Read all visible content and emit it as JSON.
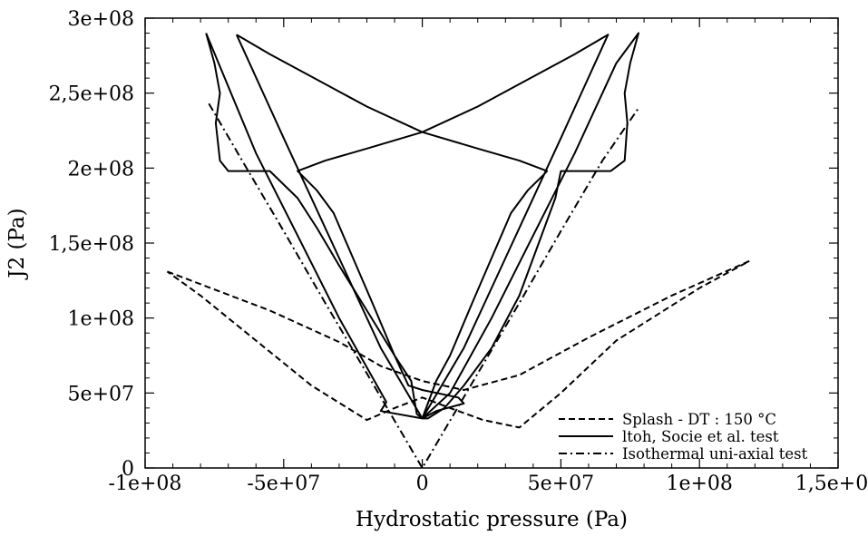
{
  "chart_data": {
    "type": "line",
    "title": "",
    "xlabel": "Hydrostatic pressure (Pa)",
    "ylabel": "J2 (Pa)",
    "xlim": [
      -100000000.0,
      150000000.0
    ],
    "ylim": [
      0,
      300000000.0
    ],
    "grid": false,
    "legend_position": "bottom-right",
    "x_ticks": [
      -100000000.0,
      -50000000.0,
      0,
      50000000.0,
      100000000.0,
      150000000.0
    ],
    "x_tick_labels": [
      "-1e+08",
      "-5e+07",
      "0",
      "5e+07",
      "1e+08",
      "1,5e+08"
    ],
    "y_ticks": [
      0,
      50000000.0,
      100000000.0,
      150000000.0,
      200000000.0,
      250000000.0,
      300000000.0
    ],
    "y_tick_labels": [
      "0",
      "5e+07",
      "1e+08",
      "1,5e+08",
      "2e+08",
      "2,5e+08",
      "3e+08"
    ],
    "series": [
      {
        "name": "Splash - DT : 150 °C",
        "style": "dashed",
        "color": "#000000",
        "points": [
          [
            -92000000.0,
            131000000.0
          ],
          [
            -55000000.0,
            105000000.0
          ],
          [
            -30000000.0,
            84000000.0
          ],
          [
            -15000000.0,
            68000000.0
          ],
          [
            0,
            58000000.0
          ],
          [
            15000000.0,
            52000000.0
          ],
          [
            35000000.0,
            62000000.0
          ],
          [
            60000000.0,
            87000000.0
          ],
          [
            90000000.0,
            115000000.0
          ],
          [
            118000000.0,
            138000000.0
          ],
          [
            100000000.0,
            120000000.0
          ],
          [
            70000000.0,
            85000000.0
          ],
          [
            50000000.0,
            50000000.0
          ],
          [
            35000000.0,
            27000000.0
          ],
          [
            22000000.0,
            32000000.0
          ],
          [
            10000000.0,
            40000000.0
          ],
          [
            0,
            47000000.0
          ],
          [
            -10000000.0,
            40000000.0
          ],
          [
            -20000000.0,
            32000000.0
          ],
          [
            -40000000.0,
            55000000.0
          ],
          [
            -60000000.0,
            85000000.0
          ],
          [
            -80000000.0,
            115000000.0
          ],
          [
            -92000000.0,
            131000000.0
          ]
        ]
      },
      {
        "name": "ltoh, Socie et al. test",
        "style": "solid",
        "color": "#000000",
        "points": [
          [
            -78000000.0,
            290000000.0
          ],
          [
            -75000000.0,
            270000000.0
          ],
          [
            -73000000.0,
            250000000.0
          ],
          [
            -74500000.0,
            230000000.0
          ],
          [
            -73000000.0,
            205000000.0
          ],
          [
            -70000000.0,
            198000000.0
          ],
          [
            -63000000.0,
            198000000.0
          ],
          [
            -55000000.0,
            198000000.0
          ],
          [
            -45000000.0,
            180000000.0
          ],
          [
            -38000000.0,
            160000000.0
          ],
          [
            -30000000.0,
            135000000.0
          ],
          [
            -20000000.0,
            105000000.0
          ],
          [
            -10000000.0,
            75000000.0
          ],
          [
            -5000000.0,
            55000000.0
          ],
          [
            0,
            52000000.0
          ],
          [
            13000000.0,
            47000000.0
          ],
          [
            15000000.0,
            43000000.0
          ],
          [
            5000000.0,
            38000000.0
          ],
          [
            0,
            33000000.0
          ],
          [
            2000000.0,
            33000000.0
          ],
          [
            8000000.0,
            40000000.0
          ],
          [
            15000000.0,
            55000000.0
          ],
          [
            25000000.0,
            80000000.0
          ],
          [
            35000000.0,
            115000000.0
          ],
          [
            42000000.0,
            150000000.0
          ],
          [
            48000000.0,
            180000000.0
          ],
          [
            50000000.0,
            198000000.0
          ],
          [
            55000000.0,
            198000000.0
          ],
          [
            68000000.0,
            198000000.0
          ],
          [
            73000000.0,
            205000000.0
          ],
          [
            74000000.0,
            230000000.0
          ],
          [
            73000000.0,
            250000000.0
          ],
          [
            75000000.0,
            270000000.0
          ],
          [
            78000000.0,
            290000000.0
          ],
          [
            70000000.0,
            270000000.0
          ],
          [
            55000000.0,
            210000000.0
          ],
          [
            40000000.0,
            155000000.0
          ],
          [
            25000000.0,
            100000000.0
          ],
          [
            10000000.0,
            50000000.0
          ],
          [
            0,
            33000000.0
          ],
          [
            -15000000.0,
            38000000.0
          ],
          [
            -13000000.0,
            44000000.0
          ],
          [
            -30000000.0,
            100000000.0
          ],
          [
            -45000000.0,
            155000000.0
          ],
          [
            -60000000.0,
            210000000.0
          ],
          [
            -78000000.0,
            290000000.0
          ]
        ]
      },
      {
        "name": "ltoh, Socie et al. test",
        "style": "solid",
        "color": "#000000",
        "points": [
          [
            -67000000.0,
            289000000.0
          ],
          [
            -55000000.0,
            276000000.0
          ],
          [
            -40000000.0,
            261000000.0
          ],
          [
            -20000000.0,
            241000000.0
          ],
          [
            0,
            224000000.0
          ],
          [
            20000000.0,
            213000000.0
          ],
          [
            35000000.0,
            205000000.0
          ],
          [
            45000000.0,
            198000000.0
          ],
          [
            44000000.0,
            196000000.0
          ],
          [
            38000000.0,
            185000000.0
          ],
          [
            32000000.0,
            170000000.0
          ],
          [
            25000000.0,
            140000000.0
          ],
          [
            18000000.0,
            110000000.0
          ],
          [
            10000000.0,
            75000000.0
          ],
          [
            5000000.0,
            58000000.0
          ],
          [
            0,
            33000000.0
          ],
          [
            -2000000.0,
            36000000.0
          ],
          [
            -4000000.0,
            58000000.0
          ],
          [
            -10000000.0,
            75000000.0
          ],
          [
            -18000000.0,
            110000000.0
          ],
          [
            -25000000.0,
            140000000.0
          ],
          [
            -32000000.0,
            170000000.0
          ],
          [
            -38000000.0,
            185000000.0
          ],
          [
            -45000000.0,
            198000000.0
          ],
          [
            -35000000.0,
            205000000.0
          ],
          [
            -20000000.0,
            213000000.0
          ],
          [
            0,
            224000000.0
          ],
          [
            20000000.0,
            241000000.0
          ],
          [
            40000000.0,
            261000000.0
          ],
          [
            55000000.0,
            276000000.0
          ],
          [
            67000000.0,
            289000000.0
          ],
          [
            50000000.0,
            220000000.0
          ],
          [
            30000000.0,
            140000000.0
          ],
          [
            15000000.0,
            80000000.0
          ],
          [
            0,
            33000000.0
          ],
          [
            -15000000.0,
            80000000.0
          ],
          [
            -30000000.0,
            140000000.0
          ],
          [
            -50000000.0,
            220000000.0
          ],
          [
            -67000000.0,
            289000000.0
          ]
        ]
      },
      {
        "name": "Isothermal uni-axial test",
        "style": "dashdot",
        "color": "#000000",
        "points": [
          [
            -77000000.0,
            243000000.0
          ],
          [
            -65000000.0,
            205000000.0
          ],
          [
            -50000000.0,
            158000000.0
          ],
          [
            -35000000.0,
            110000000.0
          ],
          [
            -20000000.0,
            63000000.0
          ],
          [
            0,
            0
          ],
          [
            20000000.0,
            63000000.0
          ],
          [
            35000000.0,
            110000000.0
          ],
          [
            50000000.0,
            158000000.0
          ],
          [
            65000000.0,
            205000000.0
          ],
          [
            78000000.0,
            240000000.0
          ]
        ]
      }
    ],
    "legend": [
      {
        "label": "Splash - DT : 150 °C",
        "style": "dashed"
      },
      {
        "label": "ltoh, Socie et al. test",
        "style": "solid"
      },
      {
        "label": "Isothermal uni-axial test",
        "style": "dashdot"
      }
    ]
  }
}
